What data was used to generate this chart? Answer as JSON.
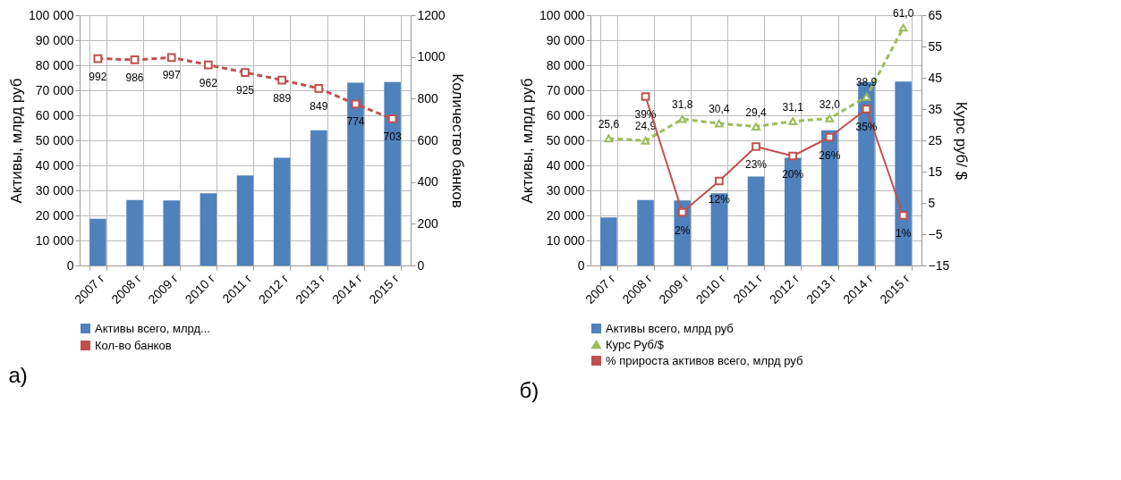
{
  "chart_data": [
    {
      "type": "bar",
      "categories": [
        "2007 г",
        "2008 г",
        "2009 г",
        "2010 г",
        "2011 г",
        "2012 г",
        "2013 г",
        "2014 г",
        "2015 г"
      ],
      "ylabel": "Активы, млрд руб",
      "y2label": "Количество  банков",
      "ylim": [
        0,
        100000
      ],
      "yticks": [
        {
          "value": 0,
          "label": "0"
        },
        {
          "value": 10000,
          "label": "10 000"
        },
        {
          "value": 20000,
          "label": "20 000"
        },
        {
          "value": 30000,
          "label": "30 000"
        },
        {
          "value": 40000,
          "label": "40 000"
        },
        {
          "value": 50000,
          "label": "50 000"
        },
        {
          "value": 60000,
          "label": "60 000"
        },
        {
          "value": 70000,
          "label": "70 000"
        },
        {
          "value": 80000,
          "label": "80 000"
        },
        {
          "value": 90000,
          "label": "90 000"
        },
        {
          "value": 100000,
          "label": "100 000"
        }
      ],
      "y2lim": [
        0,
        1200
      ],
      "y2ticks": [
        0,
        200,
        400,
        600,
        800,
        1000,
        1200
      ],
      "grid": true,
      "legend": "bottom",
      "annotations": [
        "а)"
      ],
      "series": [
        {
          "name": "Активы всего,  млрд...",
          "color": "#4f81bd",
          "values": [
            18700,
            26200,
            26000,
            28800,
            36000,
            43000,
            54000,
            73000,
            73300
          ]
        },
        {
          "name": "Кол-во банков",
          "type": "line",
          "axis": "y2",
          "color": "#c0504d",
          "marker": "square",
          "line_style": "dashed",
          "values": [
            992,
            986,
            997,
            962,
            925,
            889,
            849,
            774,
            703
          ],
          "value_labels": [
            "992",
            "986",
            "997",
            "962",
            "925",
            "889",
            "849",
            "774",
            "703"
          ]
        }
      ]
    },
    {
      "type": "bar",
      "categories": [
        "2007 г",
        "2008 г",
        "2009 г",
        "2010 г",
        "2011 г",
        "2012 г",
        "2013 г",
        "2014 г",
        "2015 г"
      ],
      "ylabel": "Активы, млрд руб",
      "y2label": "Курс руб/ $",
      "ylim": [
        0,
        100000
      ],
      "yticks": [
        {
          "value": 0,
          "label": "0"
        },
        {
          "value": 10000,
          "label": "10 000"
        },
        {
          "value": 20000,
          "label": "20 000"
        },
        {
          "value": 30000,
          "label": "30 000"
        },
        {
          "value": 40000,
          "label": "40 000"
        },
        {
          "value": 50000,
          "label": "50 000"
        },
        {
          "value": 60000,
          "label": "60 000"
        },
        {
          "value": 70000,
          "label": "70 000"
        },
        {
          "value": 80000,
          "label": "80 000"
        },
        {
          "value": 90000,
          "label": "90 000"
        },
        {
          "value": 100000,
          "label": "100 000"
        }
      ],
      "y2lim": [
        -15,
        65
      ],
      "y2ticks": [
        -15,
        -5,
        5,
        15,
        25,
        35,
        45,
        55,
        65
      ],
      "grid": true,
      "legend": "bottom",
      "annotations": [
        "б)"
      ],
      "series": [
        {
          "name": "Активы всего,  млрд  руб",
          "color": "#4f81bd",
          "values": [
            19200,
            26200,
            26000,
            28800,
            35500,
            43000,
            54000,
            73300,
            73500
          ]
        },
        {
          "name": "Курс Руб/$",
          "type": "line",
          "axis": "y2",
          "color": "#9bbb59",
          "marker": "triangle",
          "line_style": "dashed",
          "values": [
            25.6,
            24.9,
            31.8,
            30.4,
            29.4,
            31.1,
            32.0,
            38.9,
            61.0
          ],
          "value_labels": [
            "25,6",
            "24,9",
            "31,8",
            "30,4",
            "29,4",
            "31,1",
            "32,0",
            "38,9",
            "61,0"
          ]
        },
        {
          "name": "% прироста активов всего,  млрд  руб",
          "type": "line",
          "axis": "y2",
          "color": "#c0504d",
          "marker": "square",
          "line_style": "solid",
          "values": [
            null,
            39,
            2,
            12,
            23,
            20,
            26,
            35,
            1
          ],
          "value_labels": [
            null,
            "39%",
            "2%",
            "12%",
            "23%",
            "20%",
            "26%",
            "35%",
            "1%"
          ]
        }
      ]
    }
  ]
}
